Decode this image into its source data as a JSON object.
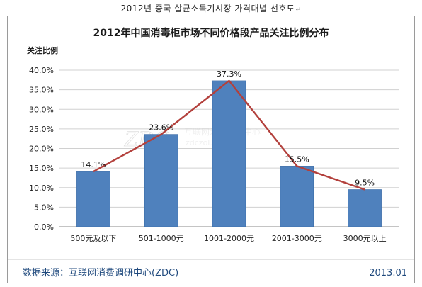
{
  "caption": {
    "text": "2012년 중국 살균소독기시장 가격대별 선호도",
    "mark": "↵"
  },
  "chart_data": {
    "type": "bar",
    "title": "2012年中国消毒柜市场不同价格段产品关注比例分布",
    "ylabel": "关注比例",
    "xlabel": "",
    "categories": [
      "500元及以下",
      "501-1000元",
      "1001-2000元",
      "2001-3000元",
      "3000元以上"
    ],
    "values": [
      14.1,
      23.6,
      37.3,
      15.5,
      9.5
    ],
    "value_labels": [
      "14.1%",
      "23.6%",
      "37.3%",
      "15.5%",
      "9.5%"
    ],
    "yticks": [
      "0.0%",
      "5.0%",
      "10.0%",
      "15.0%",
      "20.0%",
      "25.0%",
      "30.0%",
      "35.0%",
      "40.0%"
    ],
    "ylim": [
      0,
      40
    ],
    "grid": true,
    "overlay_line": true,
    "colors": {
      "bar": "#4f81bd",
      "bar_edge": "#3a6aa4",
      "line": "#b3403c",
      "footer": "#1f497d"
    }
  },
  "watermark": {
    "logo": "ZDC",
    "cn": "互联网消费调研中心",
    "url": "zdczol.com.cn"
  },
  "footer": {
    "source": "数据来源：互联网消费调研中心(ZDC)",
    "date": "2013.01"
  }
}
